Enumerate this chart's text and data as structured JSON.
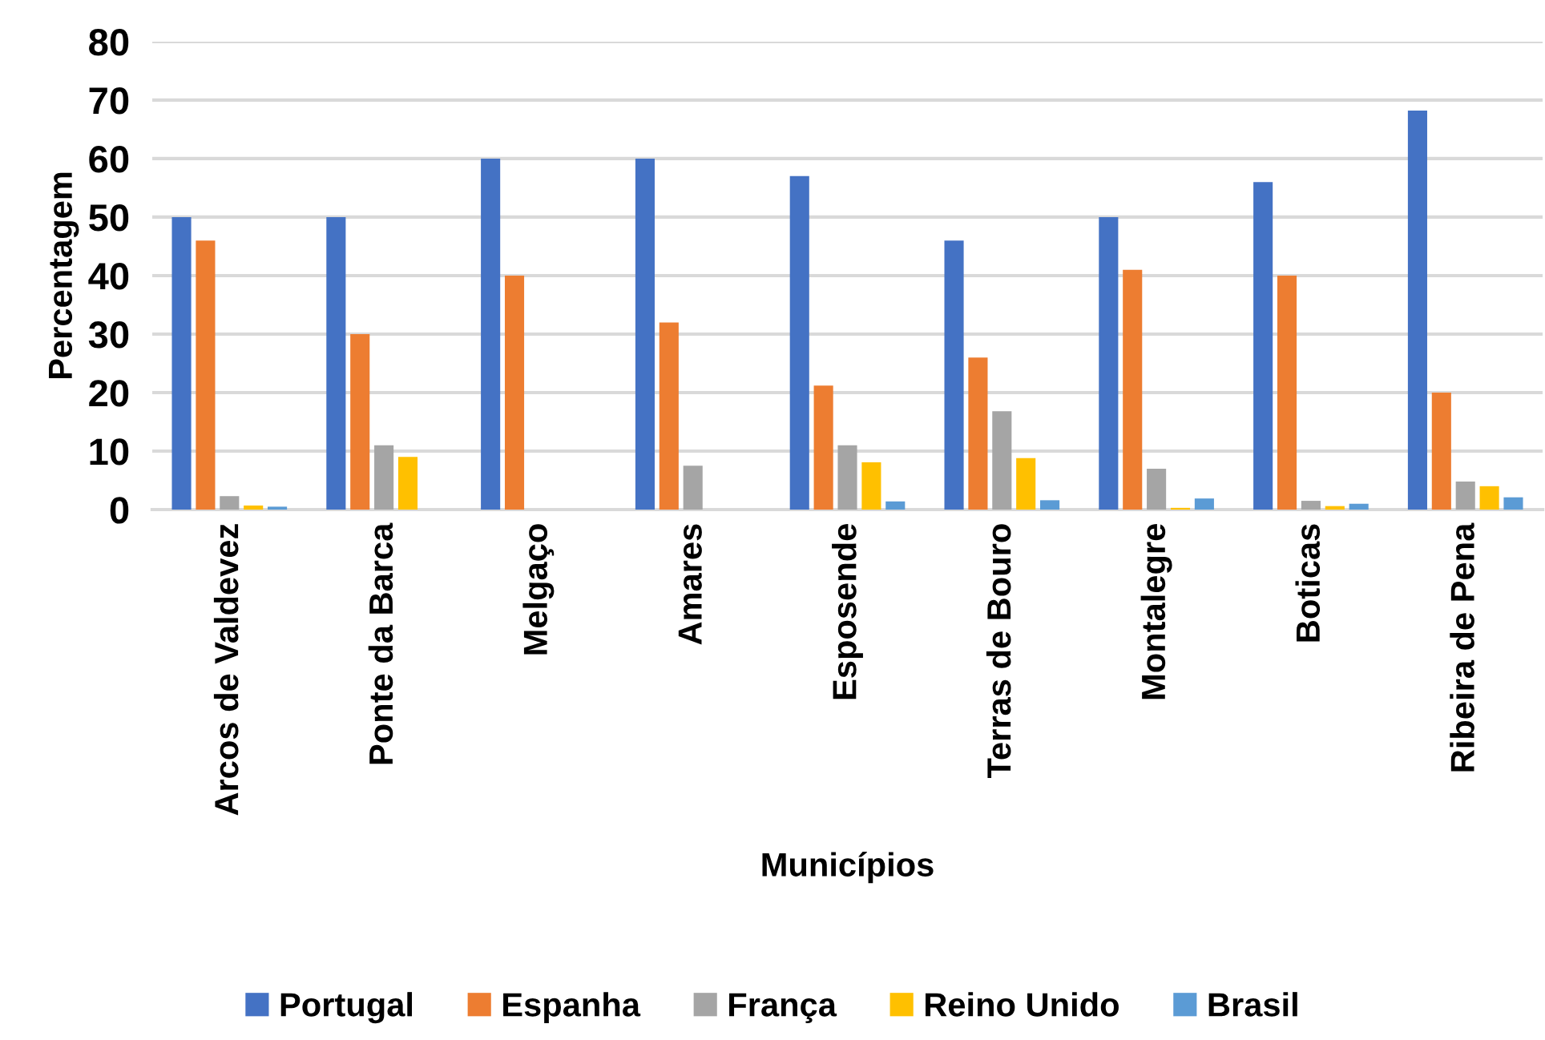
{
  "chart_data": {
    "type": "bar",
    "xlabel": "Municípios",
    "ylabel": "Percentagem",
    "categories": [
      "Arcos de Valdevez",
      "Ponte da Barca",
      "Melgaço",
      "Amares",
      "Esposende",
      "Terras de Bouro",
      "Montalegre",
      "Boticas",
      "Ribeira de Pena"
    ],
    "series": [
      {
        "name": "Portugal",
        "color": "#4472c4",
        "values": [
          50,
          50,
          60,
          60,
          57,
          46,
          50,
          56,
          68.2
        ]
      },
      {
        "name": "Espanha",
        "color": "#ed7d31",
        "values": [
          46,
          30,
          40,
          32,
          21.2,
          26,
          41,
          40,
          20
        ]
      },
      {
        "name": "França",
        "color": "#a5a5a5",
        "values": [
          2.3,
          11,
          0,
          7.5,
          11,
          16.8,
          7,
          1.5,
          4.8
        ]
      },
      {
        "name": "Reino Unido",
        "color": "#ffc000",
        "values": [
          0.7,
          9,
          0,
          0,
          8.1,
          8.8,
          0.3,
          0.6,
          4
        ]
      },
      {
        "name": "Brasil",
        "color": "#5b9bd5",
        "values": [
          0.5,
          0,
          0,
          0,
          1.4,
          1.6,
          1.9,
          1,
          2.1
        ]
      }
    ],
    "ylim": [
      0,
      80
    ],
    "yticks": [
      0,
      10,
      20,
      30,
      40,
      50,
      60,
      70,
      80
    ],
    "grid": "y",
    "legend": "bottom"
  }
}
